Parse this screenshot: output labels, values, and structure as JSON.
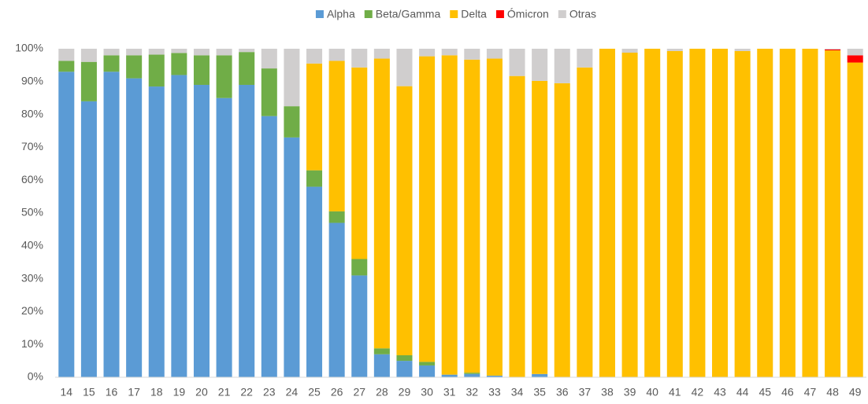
{
  "chart_data": {
    "type": "stacked_bar",
    "categories": [
      "14",
      "15",
      "16",
      "17",
      "18",
      "19",
      "20",
      "21",
      "22",
      "23",
      "24",
      "25",
      "26",
      "27",
      "28",
      "29",
      "30",
      "31",
      "32",
      "33",
      "34",
      "35",
      "36",
      "37",
      "38",
      "39",
      "40",
      "41",
      "42",
      "43",
      "44",
      "45",
      "46",
      "47",
      "48",
      "49"
    ],
    "series": [
      {
        "name": "Alpha",
        "color": "#5b9bd5",
        "values": [
          93,
          84,
          93,
          91,
          88.5,
          92,
          89,
          85,
          89,
          79.5,
          73,
          58,
          47,
          31,
          7,
          5,
          3.6,
          0.8,
          1,
          0.5,
          0,
          1,
          0,
          0,
          0,
          0,
          0,
          0,
          0,
          0,
          0,
          0,
          0,
          0,
          0,
          0
        ]
      },
      {
        "name": "Beta/Gamma",
        "color": "#70ad47",
        "values": [
          3.3,
          12,
          5,
          7,
          9.7,
          6.7,
          9,
          13,
          10,
          14.5,
          9.5,
          5,
          3.5,
          5,
          1.8,
          1.7,
          1.1,
          0,
          0.4,
          0,
          0,
          0,
          0,
          0,
          0,
          0,
          0,
          0,
          0,
          0,
          0,
          0,
          0,
          0,
          0,
          0
        ]
      },
      {
        "name": "Delta",
        "color": "#ffc000",
        "values": [
          0,
          0,
          0,
          0,
          0,
          0,
          0,
          0,
          0,
          0,
          0,
          32.5,
          45.8,
          58.3,
          88.2,
          81.9,
          93,
          97.2,
          95.3,
          96.5,
          91.7,
          89.2,
          89.5,
          94.3,
          100,
          98.8,
          100,
          99.3,
          100,
          100,
          99.3,
          100,
          100,
          100,
          99.5,
          95.8
        ]
      },
      {
        "name": "Ómicron",
        "color": "#ff0000",
        "values": [
          0,
          0,
          0,
          0,
          0,
          0,
          0,
          0,
          0,
          0,
          0,
          0,
          0,
          0,
          0,
          0,
          0,
          0,
          0,
          0,
          0,
          0,
          0,
          0,
          0,
          0,
          0,
          0,
          0,
          0,
          0,
          0,
          0,
          0,
          0.3,
          2.2
        ]
      },
      {
        "name": "Otras",
        "color": "#d0cece",
        "values": [
          3.7,
          4,
          2,
          2,
          1.8,
          1.3,
          2,
          2,
          1,
          6,
          17.5,
          4.5,
          3.7,
          5.7,
          3,
          11.4,
          2.3,
          2,
          3.3,
          3,
          8.3,
          9.8,
          10.5,
          5.7,
          0,
          1.2,
          0,
          0.7,
          0,
          0,
          0.7,
          0,
          0,
          0,
          0.2,
          2
        ]
      }
    ],
    "ylim": [
      0,
      100
    ],
    "yticks": [
      {
        "value": 0,
        "label": "0%"
      },
      {
        "value": 10,
        "label": "10%"
      },
      {
        "value": 20,
        "label": "20%"
      },
      {
        "value": 30,
        "label": "30%"
      },
      {
        "value": 40,
        "label": "40%"
      },
      {
        "value": 50,
        "label": "50%"
      },
      {
        "value": 60,
        "label": "60%"
      },
      {
        "value": 70,
        "label": "70%"
      },
      {
        "value": 80,
        "label": "80%"
      },
      {
        "value": 90,
        "label": "90%"
      },
      {
        "value": 100,
        "label": "100%"
      }
    ],
    "grid": false,
    "legend": "top"
  }
}
